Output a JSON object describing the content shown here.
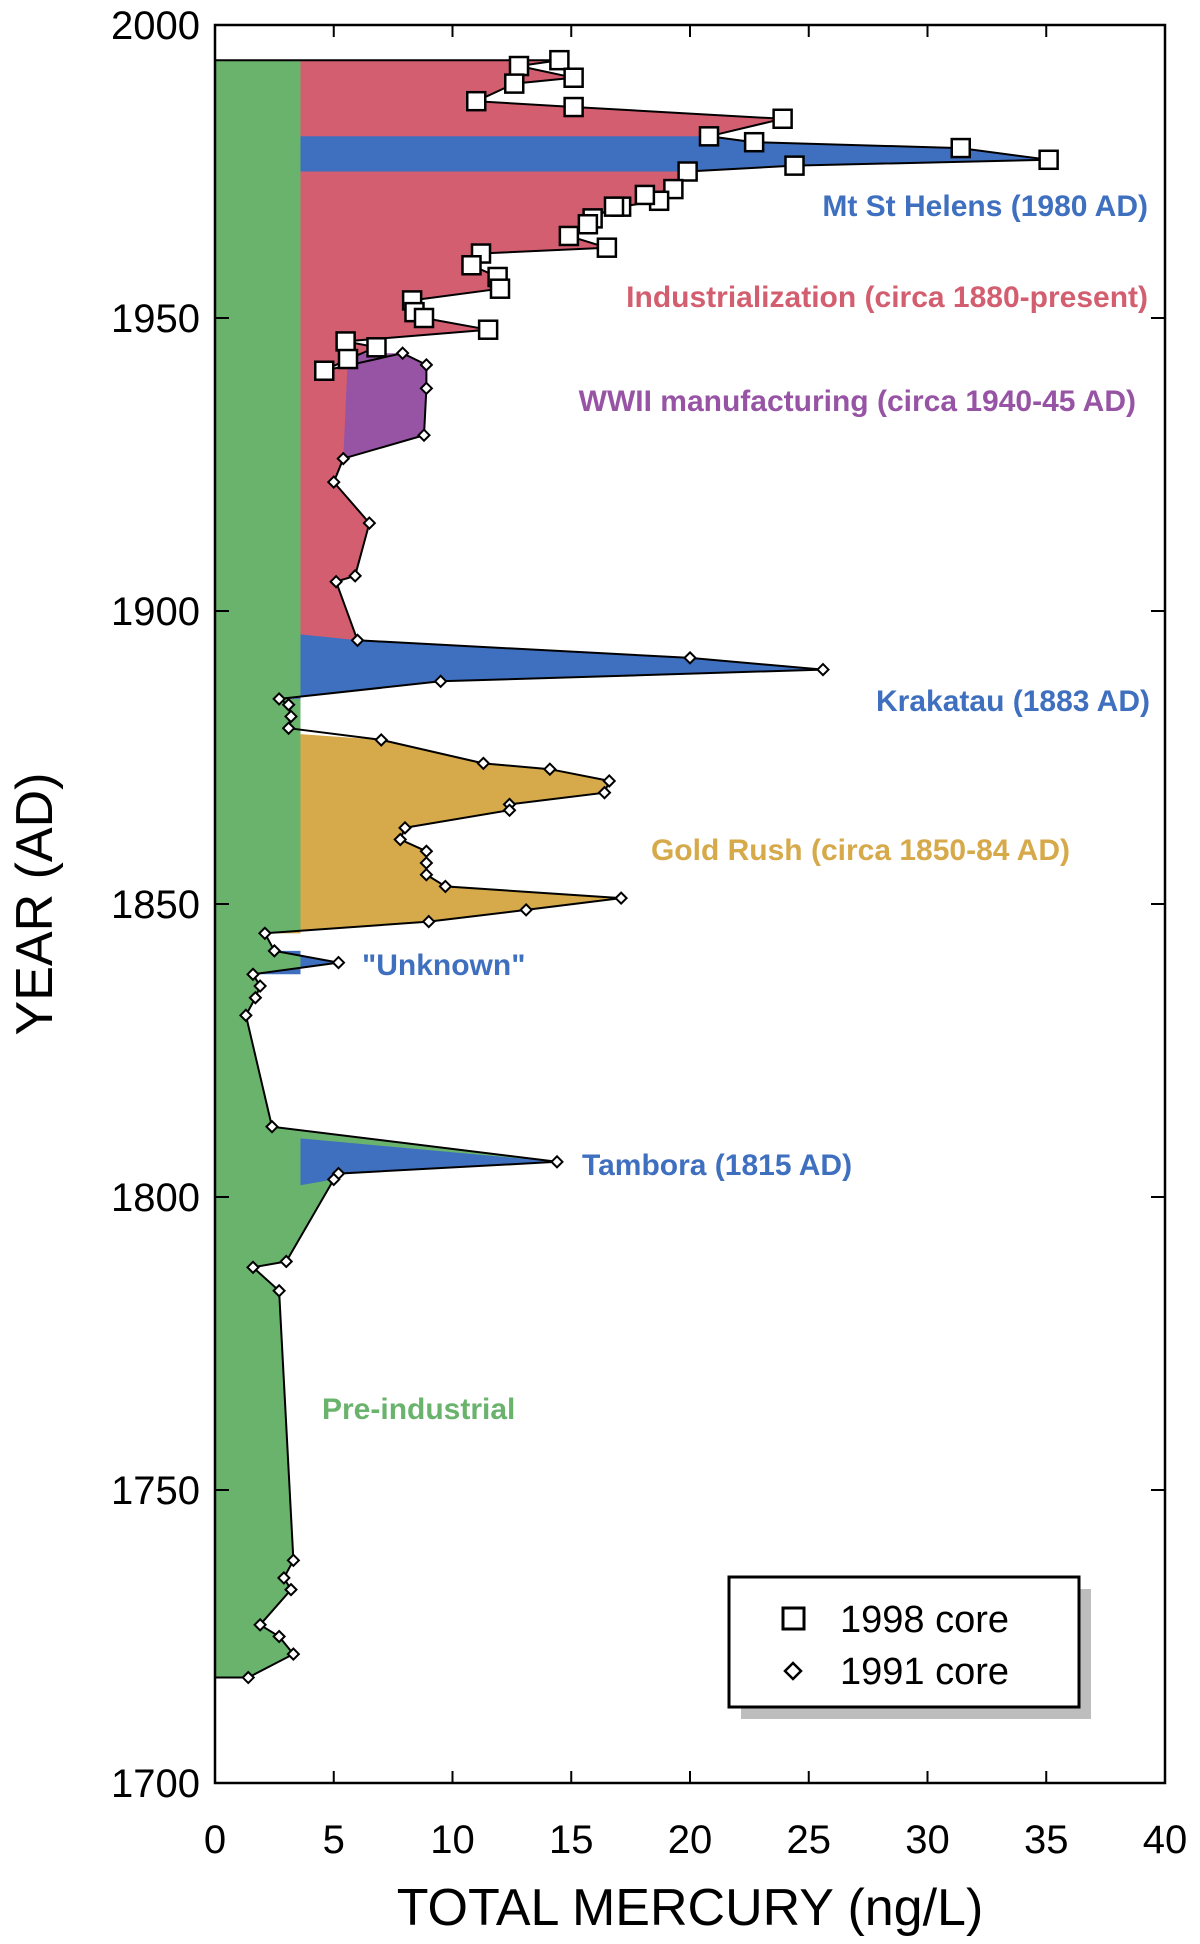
{
  "chart_data": {
    "type": "area",
    "xlabel": "TOTAL MERCURY (ng/L)",
    "ylabel": "YEAR (AD)",
    "xlim": [
      0,
      40
    ],
    "ylim": [
      1700,
      2000
    ],
    "xticks": [
      0,
      5,
      10,
      15,
      20,
      25,
      30,
      35,
      40
    ],
    "yticks": [
      1700,
      1750,
      1800,
      1850,
      1900,
      1950,
      2000
    ],
    "grid": false,
    "legend_position": "bottom-right",
    "baseline_hg": 3.6,
    "colors": {
      "pre_industrial": "#69b36c",
      "industrialization": "#d35e70",
      "volcanic": "#3f6fbf",
      "wwii": "#9754a5",
      "gold_rush": "#d6a94a",
      "line": "#000000"
    },
    "series": [
      {
        "name": "1998 core",
        "marker": "square",
        "points": [
          [
            14.5,
            1994
          ],
          [
            15.1,
            1991
          ],
          [
            12.8,
            1993
          ],
          [
            12.6,
            1990
          ],
          [
            11.0,
            1987
          ],
          [
            15.1,
            1986
          ],
          [
            23.9,
            1984
          ],
          [
            22.7,
            1980
          ],
          [
            20.8,
            1981
          ],
          [
            31.4,
            1979
          ],
          [
            35.1,
            1977
          ],
          [
            24.4,
            1976
          ],
          [
            19.9,
            1975
          ],
          [
            19.3,
            1972
          ],
          [
            18.7,
            1970
          ],
          [
            18.1,
            1971
          ],
          [
            17.1,
            1969
          ],
          [
            16.8,
            1969
          ],
          [
            15.9,
            1967
          ],
          [
            15.7,
            1966
          ],
          [
            14.9,
            1964
          ],
          [
            16.5,
            1962
          ],
          [
            11.2,
            1961
          ],
          [
            10.8,
            1959
          ],
          [
            11.9,
            1957
          ],
          [
            12.0,
            1955
          ],
          [
            8.3,
            1953
          ],
          [
            8.4,
            1951
          ],
          [
            8.8,
            1950
          ],
          [
            11.5,
            1948
          ],
          [
            5.5,
            1946
          ],
          [
            6.8,
            1945
          ],
          [
            5.6,
            1943
          ],
          [
            4.6,
            1941
          ]
        ]
      },
      {
        "name": "1991 core",
        "marker": "diamond",
        "points": [
          [
            7.9,
            1944
          ],
          [
            8.9,
            1942
          ],
          [
            8.9,
            1938
          ],
          [
            8.8,
            1930
          ],
          [
            5.4,
            1926
          ],
          [
            5.0,
            1922
          ],
          [
            6.5,
            1915
          ],
          [
            5.9,
            1906
          ],
          [
            5.1,
            1905
          ],
          [
            6.0,
            1895
          ],
          [
            20.0,
            1892
          ],
          [
            25.6,
            1890
          ],
          [
            9.5,
            1888
          ],
          [
            2.7,
            1885
          ],
          [
            3.1,
            1884
          ],
          [
            3.2,
            1882
          ],
          [
            3.1,
            1880
          ],
          [
            7.0,
            1878
          ],
          [
            11.3,
            1874
          ],
          [
            14.1,
            1873
          ],
          [
            16.6,
            1871
          ],
          [
            16.4,
            1869
          ],
          [
            12.4,
            1867
          ],
          [
            12.4,
            1866
          ],
          [
            8.0,
            1863
          ],
          [
            7.8,
            1861
          ],
          [
            8.9,
            1859
          ],
          [
            8.9,
            1857
          ],
          [
            8.9,
            1855
          ],
          [
            9.7,
            1853
          ],
          [
            17.1,
            1851
          ],
          [
            13.1,
            1849
          ],
          [
            9.0,
            1847
          ],
          [
            2.1,
            1845
          ],
          [
            2.5,
            1842
          ],
          [
            5.2,
            1840
          ],
          [
            1.6,
            1838
          ],
          [
            1.9,
            1836
          ],
          [
            1.7,
            1834
          ],
          [
            1.3,
            1831
          ],
          [
            2.4,
            1812
          ],
          [
            14.4,
            1806
          ],
          [
            5.2,
            1804
          ],
          [
            5.0,
            1803
          ],
          [
            3.0,
            1789
          ],
          [
            1.6,
            1788
          ],
          [
            2.7,
            1784
          ],
          [
            3.3,
            1738
          ],
          [
            2.9,
            1735
          ],
          [
            3.2,
            1733
          ],
          [
            1.9,
            1727
          ],
          [
            2.7,
            1725
          ],
          [
            3.3,
            1722
          ],
          [
            1.4,
            1718
          ]
        ]
      }
    ],
    "annotations": [
      {
        "text": "Mt St Helens (1980 AD)",
        "color": "#3f6fbf"
      },
      {
        "text": "Industrialization (circa 1880-present)",
        "color": "#d35e70"
      },
      {
        "text": "WWII manufacturing (circa 1940-45 AD)",
        "color": "#9754a5"
      },
      {
        "text": "Krakatau (1883 AD)",
        "color": "#3f6fbf"
      },
      {
        "text": "Gold Rush (circa 1850-84 AD)",
        "color": "#d6a94a"
      },
      {
        "text": "\"Unknown\"",
        "color": "#3f6fbf"
      },
      {
        "text": "Tambora (1815 AD)",
        "color": "#3f6fbf"
      },
      {
        "text": "Pre-industrial",
        "color": "#69b36c"
      }
    ]
  }
}
